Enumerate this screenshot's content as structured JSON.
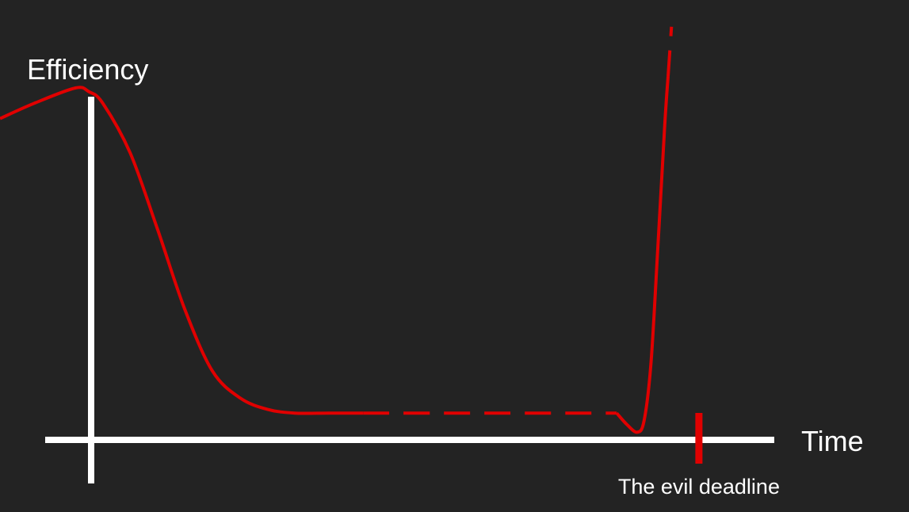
{
  "colors": {
    "background": "#232323",
    "axis": "#ffffff",
    "curve": "#e00000",
    "deadline_marker": "#e00000",
    "text": "#ffffff"
  },
  "chart_data": {
    "type": "line",
    "title": "",
    "xlabel": "Time",
    "ylabel": "Efficiency",
    "grid": false,
    "legend": "none",
    "xlim": [
      -0.13,
      1.0
    ],
    "ylim": [
      0.0,
      1.15
    ],
    "x_ticks": [],
    "y_ticks": [],
    "annotations": [
      {
        "label": "The evil deadline",
        "x": 0.89
      }
    ],
    "series": [
      {
        "segments": [
          {
            "style": "solid",
            "points": [
              [
                -0.13,
                0.84
              ],
              [
                -0.08,
                0.88
              ],
              [
                -0.02,
                0.92
              ],
              [
                0.0,
                0.91
              ],
              [
                0.02,
                0.88
              ],
              [
                0.06,
                0.75
              ],
              [
                0.1,
                0.55
              ],
              [
                0.14,
                0.34
              ],
              [
                0.18,
                0.18
              ],
              [
                0.22,
                0.11
              ],
              [
                0.26,
                0.08
              ],
              [
                0.3,
                0.07
              ],
              [
                0.35,
                0.07
              ],
              [
                0.4,
                0.07
              ]
            ]
          },
          {
            "style": "dashed",
            "points": [
              [
                0.4,
                0.07
              ],
              [
                0.5,
                0.07
              ],
              [
                0.6,
                0.07
              ],
              [
                0.7,
                0.07
              ],
              [
                0.77,
                0.07
              ]
            ]
          },
          {
            "style": "solid",
            "points": [
              [
                0.77,
                0.07
              ],
              [
                0.785,
                0.04
              ],
              [
                0.8,
                0.02
              ],
              [
                0.81,
                0.05
              ],
              [
                0.82,
                0.2
              ],
              [
                0.83,
                0.5
              ],
              [
                0.84,
                0.82
              ],
              [
                0.845,
                0.95
              ]
            ]
          },
          {
            "style": "dashed",
            "points": [
              [
                0.845,
                0.95
              ],
              [
                0.85,
                1.08
              ]
            ]
          }
        ]
      }
    ]
  }
}
